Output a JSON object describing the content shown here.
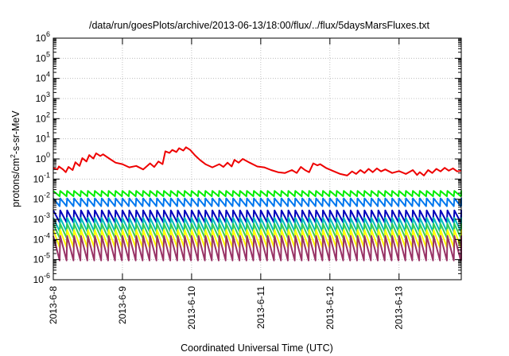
{
  "chart_data": {
    "type": "line",
    "title": "/data/run/goesPlots/archive/2013-06-13/18:00/flux/../flux/5daysMarsFluxes.txt",
    "xlabel": "Coordinated Universal Time (UTC)",
    "ylabel_parts": {
      "main": "protons/cm",
      "sup": "2",
      "tail": "-s-sr-MeV"
    },
    "yscale": "log",
    "ylim": [
      1e-06,
      1000000.0
    ],
    "y_tick_exponents": [
      -6,
      -5,
      -4,
      -3,
      -2,
      -1,
      0,
      1,
      2,
      3,
      4,
      5,
      6
    ],
    "y_tick_base": "10",
    "xlim": [
      0,
      5.9
    ],
    "x_ticks": [
      {
        "day": 0,
        "label": "2013-6-8"
      },
      {
        "day": 1,
        "label": "2013-6-9"
      },
      {
        "day": 2,
        "label": "2013-6-10"
      },
      {
        "day": 3,
        "label": "2013-6-11"
      },
      {
        "day": 4,
        "label": "2013-6-12"
      },
      {
        "day": 5,
        "label": "2013-6-13"
      }
    ],
    "grid": true,
    "series": [
      {
        "color": "#ee0000",
        "points": [
          [
            0.0,
            0.35
          ],
          [
            0.06,
            0.3
          ],
          [
            0.08,
            0.42
          ],
          [
            0.14,
            0.3
          ],
          [
            0.18,
            0.22
          ],
          [
            0.22,
            0.4
          ],
          [
            0.28,
            0.28
          ],
          [
            0.32,
            0.68
          ],
          [
            0.38,
            0.45
          ],
          [
            0.42,
            1.1
          ],
          [
            0.48,
            0.75
          ],
          [
            0.52,
            1.55
          ],
          [
            0.58,
            1.05
          ],
          [
            0.62,
            1.9
          ],
          [
            0.68,
            1.4
          ],
          [
            0.72,
            1.7
          ],
          [
            0.8,
            1.1
          ],
          [
            0.9,
            0.65
          ],
          [
            1.0,
            0.55
          ],
          [
            1.1,
            0.38
          ],
          [
            1.2,
            0.45
          ],
          [
            1.3,
            0.3
          ],
          [
            1.4,
            0.6
          ],
          [
            1.46,
            0.4
          ],
          [
            1.52,
            0.75
          ],
          [
            1.58,
            0.55
          ],
          [
            1.62,
            2.4
          ],
          [
            1.68,
            2.0
          ],
          [
            1.72,
            2.8
          ],
          [
            1.78,
            2.2
          ],
          [
            1.82,
            3.4
          ],
          [
            1.88,
            2.6
          ],
          [
            1.92,
            3.8
          ],
          [
            1.98,
            2.8
          ],
          [
            2.05,
            1.5
          ],
          [
            2.12,
            0.9
          ],
          [
            2.2,
            0.55
          ],
          [
            2.3,
            0.38
          ],
          [
            2.4,
            0.55
          ],
          [
            2.46,
            0.4
          ],
          [
            2.52,
            0.65
          ],
          [
            2.58,
            0.42
          ],
          [
            2.62,
            0.9
          ],
          [
            2.68,
            0.65
          ],
          [
            2.74,
            1.0
          ],
          [
            2.84,
            0.65
          ],
          [
            2.95,
            0.42
          ],
          [
            3.05,
            0.38
          ],
          [
            3.15,
            0.28
          ],
          [
            3.25,
            0.22
          ],
          [
            3.35,
            0.2
          ],
          [
            3.45,
            0.28
          ],
          [
            3.52,
            0.2
          ],
          [
            3.58,
            0.4
          ],
          [
            3.64,
            0.28
          ],
          [
            3.7,
            0.22
          ],
          [
            3.76,
            0.6
          ],
          [
            3.82,
            0.48
          ],
          [
            3.86,
            0.55
          ],
          [
            3.95,
            0.35
          ],
          [
            4.05,
            0.25
          ],
          [
            4.15,
            0.18
          ],
          [
            4.25,
            0.15
          ],
          [
            4.32,
            0.24
          ],
          [
            4.38,
            0.18
          ],
          [
            4.44,
            0.28
          ],
          [
            4.5,
            0.2
          ],
          [
            4.56,
            0.32
          ],
          [
            4.62,
            0.22
          ],
          [
            4.68,
            0.34
          ],
          [
            4.74,
            0.24
          ],
          [
            4.8,
            0.3
          ],
          [
            4.9,
            0.2
          ],
          [
            5.0,
            0.25
          ],
          [
            5.1,
            0.18
          ],
          [
            5.2,
            0.28
          ],
          [
            5.26,
            0.16
          ],
          [
            5.3,
            0.22
          ],
          [
            5.36,
            0.15
          ],
          [
            5.42,
            0.28
          ],
          [
            5.48,
            0.2
          ],
          [
            5.54,
            0.32
          ],
          [
            5.6,
            0.24
          ],
          [
            5.66,
            0.36
          ],
          [
            5.72,
            0.26
          ],
          [
            5.78,
            0.34
          ],
          [
            5.84,
            0.24
          ],
          [
            5.9,
            0.26
          ]
        ]
      },
      {
        "color": "#00ee00",
        "sawtooth": {
          "peak": 0.026,
          "trough": 0.014,
          "period": 0.1
        }
      },
      {
        "color": "#0077ee",
        "sawtooth": {
          "peak": 0.011,
          "trough": 0.0045,
          "period": 0.1
        }
      },
      {
        "color": "#0000bb",
        "sawtooth": {
          "peak": 0.0028,
          "trough": 0.0007,
          "period": 0.1
        }
      },
      {
        "color": "#00bbbb",
        "sawtooth": {
          "peak": 0.0012,
          "trough": 0.00025,
          "period": 0.1
        }
      },
      {
        "color": "#33cc55",
        "sawtooth": {
          "peak": 0.0006,
          "trough": 0.00012,
          "period": 0.1
        }
      },
      {
        "color": "#ffff00",
        "sawtooth": {
          "peak": 0.0003,
          "trough": 4e-05,
          "period": 0.1
        }
      },
      {
        "color": "#993366",
        "sawtooth": {
          "peak": 0.00015,
          "trough": 9e-06,
          "period": 0.1
        }
      }
    ]
  }
}
